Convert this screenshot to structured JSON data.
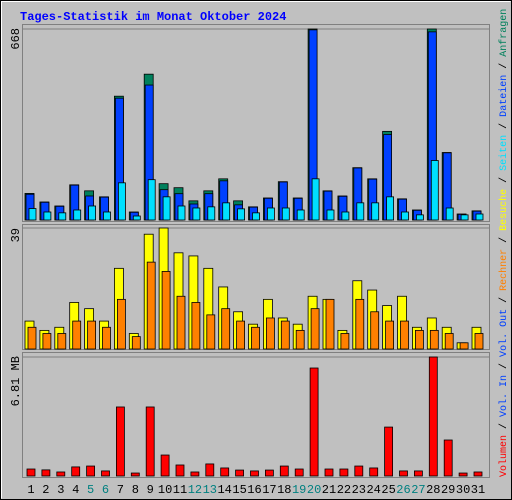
{
  "title": "Tages-Statistik im Monat Oktober 2024",
  "legend_separator": "/",
  "chart_data": [
    {
      "type": "bar",
      "ylim": [
        0,
        668
      ],
      "yticks": [
        668
      ],
      "series": [
        {
          "name": "Anfragen",
          "color": "#00805c",
          "values": [
            93,
            63,
            49,
            123,
            102,
            81,
            433,
            28,
            510,
            127,
            113,
            67,
            102,
            144,
            67,
            46,
            77,
            134,
            77,
            668,
            102,
            84,
            183,
            144,
            310,
            74,
            35,
            668,
            236,
            21,
            32
          ]
        },
        {
          "name": "Dateien",
          "color": "#0040ff",
          "values": [
            90,
            62,
            48,
            122,
            84,
            80,
            426,
            27,
            472,
            106,
            92,
            56,
            92,
            137,
            53,
            45,
            76,
            133,
            76,
            665,
            101,
            83,
            182,
            143,
            299,
            73,
            34,
            658,
            235,
            20,
            31
          ]
        },
        {
          "name": "Seiten",
          "color": "#00e0ff",
          "values": [
            40,
            28,
            25,
            35,
            49,
            28,
            130,
            14,
            141,
            81,
            49,
            42,
            46,
            60,
            39,
            25,
            42,
            42,
            35,
            144,
            35,
            28,
            60,
            60,
            81,
            28,
            18,
            208,
            42,
            18,
            21
          ]
        }
      ]
    },
    {
      "type": "bar",
      "ylim": [
        0,
        39
      ],
      "yticks": [
        39
      ],
      "series": [
        {
          "name": "Besuche",
          "color": "#ffff00",
          "values": [
            9,
            6,
            7,
            15,
            13,
            9,
            26,
            5,
            37,
            39,
            31,
            30,
            26,
            20,
            12,
            8,
            16,
            10,
            8,
            17,
            16,
            6,
            22,
            19,
            14,
            17,
            7,
            10,
            7,
            2,
            7
          ]
        },
        {
          "name": "Rechner",
          "color": "#ff8000",
          "values": [
            7,
            5,
            5,
            9,
            9,
            7,
            16,
            4,
            28,
            25,
            17,
            15,
            11,
            13,
            9,
            7,
            10,
            9,
            6,
            13,
            16,
            5,
            16,
            12,
            9,
            9,
            6,
            6,
            5,
            2,
            5
          ]
        }
      ]
    },
    {
      "type": "bar",
      "ylim": [
        0,
        6.81
      ],
      "yticks": [
        {
          "value": 6.81,
          "label": "6.81 MB"
        }
      ],
      "categories": [
        "1",
        "2",
        "3",
        "4",
        "5",
        "6",
        "7",
        "8",
        "9",
        "10",
        "11",
        "12",
        "13",
        "14",
        "15",
        "16",
        "17",
        "18",
        "19",
        "20",
        "21",
        "22",
        "23",
        "24",
        "25",
        "26",
        "27",
        "28",
        "29",
        "30",
        "31"
      ],
      "highlight_categories": [
        "5",
        "6",
        "12",
        "13",
        "19",
        "20",
        "26",
        "27"
      ],
      "highlight_color": "#008080",
      "series": [
        {
          "name": "Volumen",
          "color": "#ff0000",
          "values": [
            0.4,
            0.35,
            0.23,
            0.52,
            0.57,
            0.29,
            3.95,
            0.17,
            3.95,
            1.2,
            0.63,
            0.23,
            0.69,
            0.46,
            0.34,
            0.29,
            0.34,
            0.57,
            0.4,
            6.18,
            0.4,
            0.4,
            0.57,
            0.46,
            2.8,
            0.29,
            0.29,
            6.81,
            2.06,
            0.17,
            0.23
          ]
        }
      ],
      "legend_extra": [
        {
          "name": "Vol. In",
          "color": "#0040ff"
        },
        {
          "name": "Vol. Out",
          "color": "#0040ff"
        }
      ]
    }
  ]
}
